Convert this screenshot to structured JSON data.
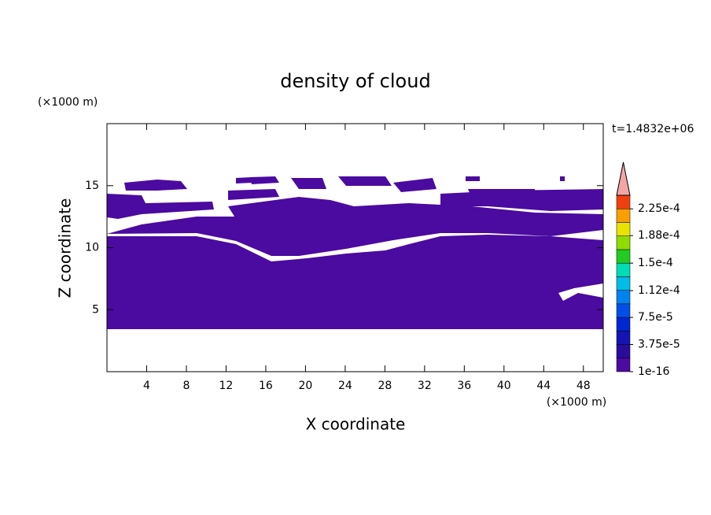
{
  "chart_data": {
    "type": "contour",
    "title": "density of cloud",
    "x_label": "X coordinate",
    "y_label": "Z coordinate",
    "x_unit": "(×1000 m)",
    "y_unit": "(×1000 m)",
    "time_label": "t=1.4832e+06",
    "xlim": [
      0,
      50
    ],
    "ylim": [
      0,
      20
    ],
    "xticks": [
      4,
      8,
      12,
      16,
      20,
      24,
      28,
      32,
      36,
      40,
      44,
      48
    ],
    "yticks": [
      5,
      10,
      15
    ],
    "fill_color": "#4b0aa0",
    "colorbar": {
      "clim": [
        1e-16,
        0.00024375
      ],
      "ticks": [
        {
          "value": 1e-16,
          "label": "1e-16"
        },
        {
          "value": 3.75e-05,
          "label": "3.75e-5"
        },
        {
          "value": 7.5e-05,
          "label": "7.5e-5"
        },
        {
          "value": 0.000112,
          "label": "1.12e-4"
        },
        {
          "value": 0.00015,
          "label": "1.5e-4"
        },
        {
          "value": 0.000188,
          "label": "1.88e-4"
        },
        {
          "value": 0.000225,
          "label": "2.25e-4"
        }
      ],
      "colors": [
        "#4b0aa0",
        "#2a0c9c",
        "#1414b4",
        "#0028d0",
        "#0050e8",
        "#0082f0",
        "#00bce8",
        "#00dcb4",
        "#20cc20",
        "#90dc00",
        "#e8e400",
        "#f8a000",
        "#f04010"
      ],
      "extend_color": "#f4a6a6"
    }
  }
}
